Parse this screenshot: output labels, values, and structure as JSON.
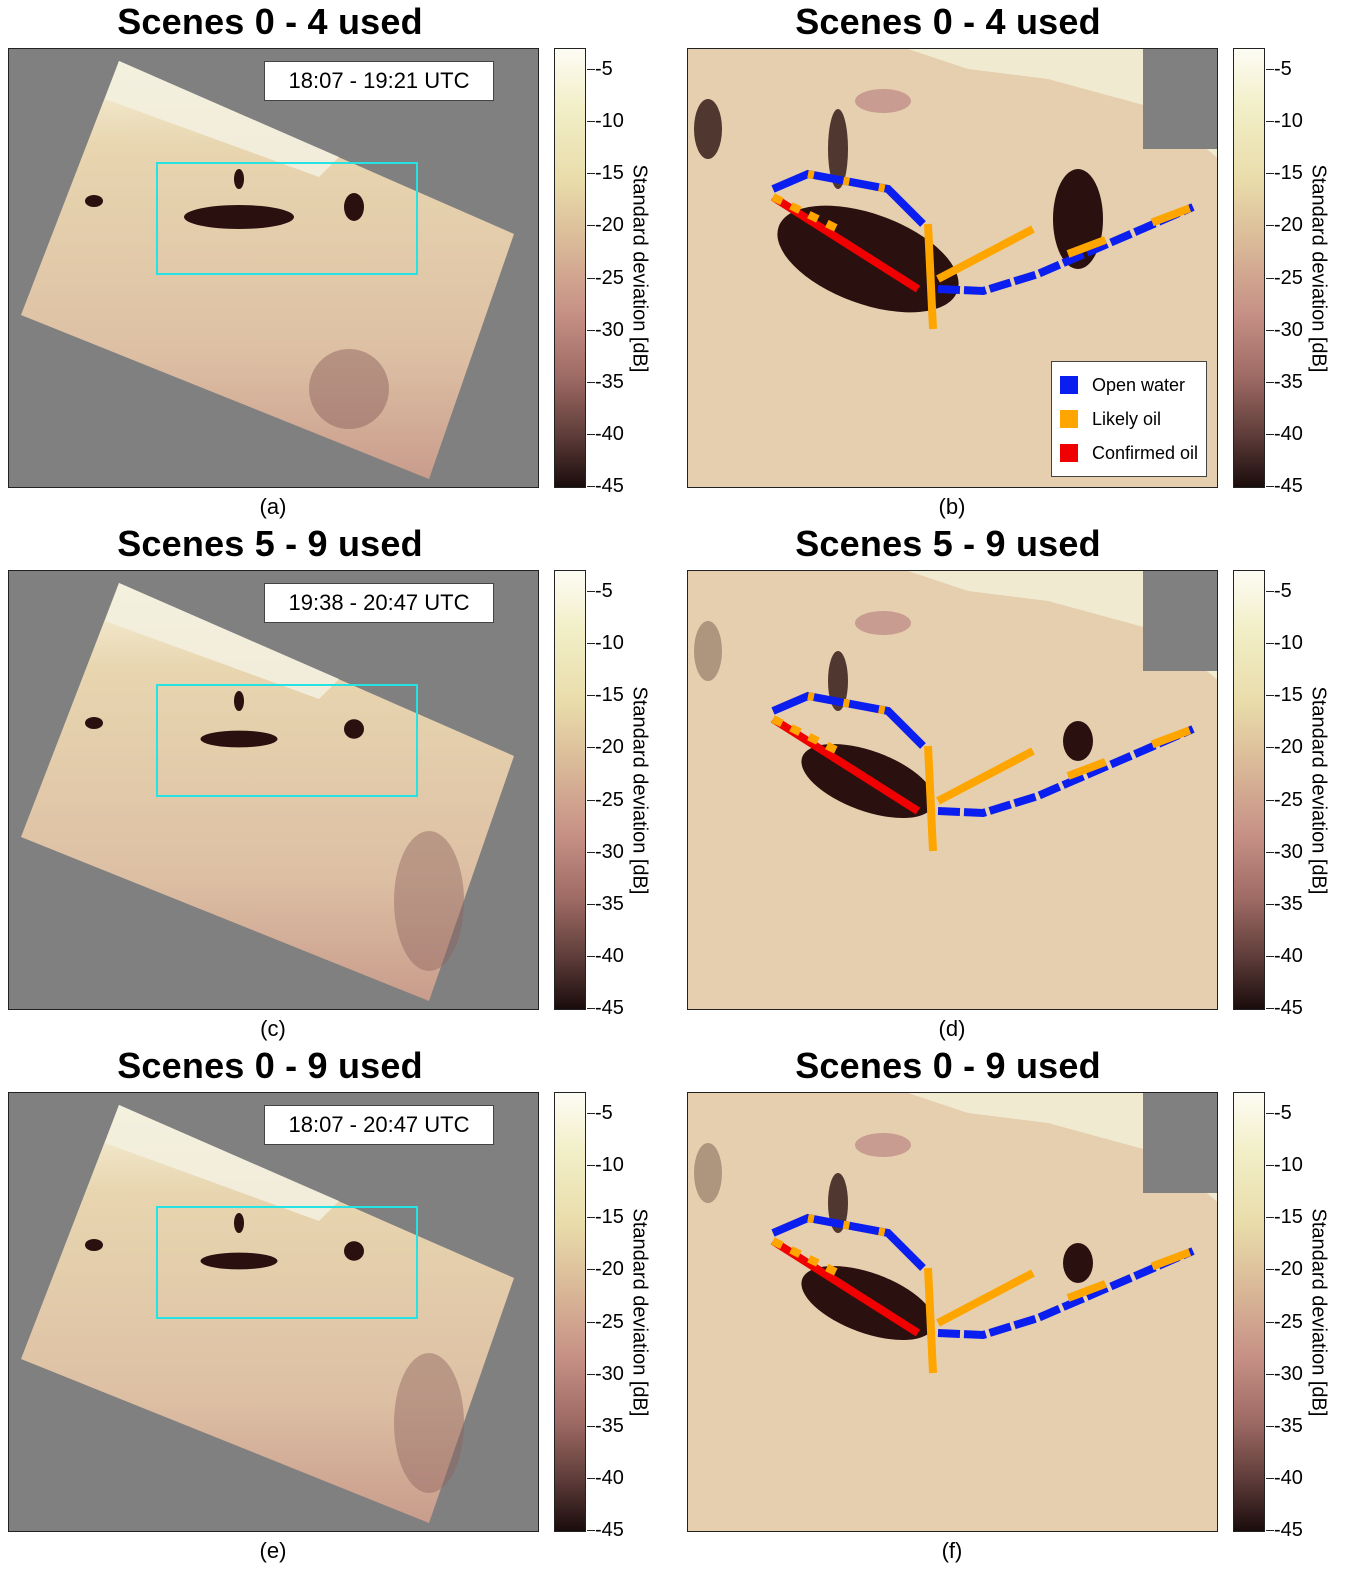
{
  "panels": [
    {
      "title": "Scenes 0 - 4 used",
      "caption": "(a)",
      "time_label": "18:07 - 19:21 UTC"
    },
    {
      "title": "Scenes 0 - 4 used",
      "caption": "(b)"
    },
    {
      "title": "Scenes 5 - 9 used",
      "caption": "(c)",
      "time_label": "19:38 - 20:47 UTC"
    },
    {
      "title": "Scenes 5 - 9 used",
      "caption": "(d)"
    },
    {
      "title": "Scenes 0 - 9 used",
      "caption": "(e)",
      "time_label": "18:07 - 20:47 UTC"
    },
    {
      "title": "Scenes 0 - 9 used",
      "caption": "(f)"
    }
  ],
  "colorbar": {
    "label": "Standard deviation [dB]",
    "ticks": [
      "-5",
      "-10",
      "-15",
      "-20",
      "-25",
      "-30",
      "-35",
      "-40",
      "-45"
    ]
  },
  "legend": {
    "items": [
      {
        "label": "Open water",
        "color": "#0b1ef0"
      },
      {
        "label": "Likely oil",
        "color": "#ffa500"
      },
      {
        "label": "Confirmed oil",
        "color": "#f00000"
      }
    ]
  },
  "colors": {
    "roi_box": "#25e3e3",
    "no_data": "#808080",
    "water": "#e6cfae",
    "oil": "#2b1010"
  }
}
